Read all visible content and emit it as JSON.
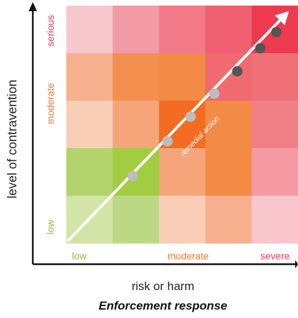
{
  "diagram": {
    "y_axis_title": "level of contravention",
    "x_axis_title": "risk or harm",
    "caption": "Enforcement response",
    "y_ticks": [
      {
        "label": "serious",
        "color": "#e83a5a"
      },
      {
        "label": "moderate",
        "color": "#f07a30"
      },
      {
        "label": "low",
        "color": "#8cbf3a"
      }
    ],
    "x_ticks": [
      {
        "label": "low",
        "color": "#8cbf3a"
      },
      {
        "label": "moderate",
        "color": "#f07a30"
      },
      {
        "label": "severe",
        "color": "#e83a5a"
      }
    ],
    "arrow_label": "remedial action",
    "grid_colors": [
      [
        "#f7c9ce",
        "#f29aa6",
        "#f27a89",
        "#f06070",
        "#ee3a4e"
      ],
      [
        "#f6b08e",
        "#f3904f",
        "#f38a45",
        "#f06a70",
        "#f07078"
      ],
      [
        "#f8cfb6",
        "#f5a579",
        "#f36c22",
        "#f38a45",
        "#f07f88"
      ],
      [
        "#b3d36d",
        "#a2cc42",
        "#f5a579",
        "#f38a45",
        "#f59aa3"
      ],
      [
        "#d2e4a6",
        "#bcd885",
        "#f8cfb6",
        "#f6b08e",
        "#f8c6cc"
      ]
    ],
    "point_count": 6
  }
}
